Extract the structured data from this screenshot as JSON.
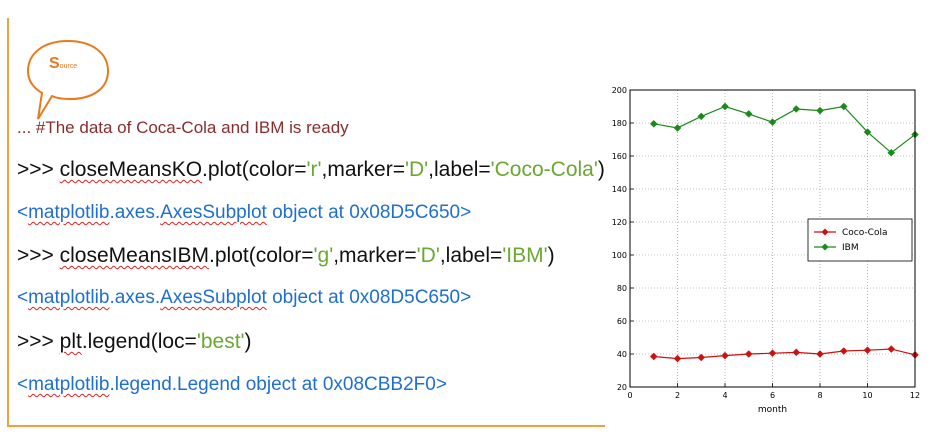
{
  "badge": {
    "letter": "S",
    "rest": "ource"
  },
  "code_lines": {
    "comment": "... #The data of Coca-Cola and IBM is ready",
    "line2": {
      "prompt": ">>> ",
      "obj": "closeMeansKO",
      "call": ".plot(color=",
      "color_val": "'r'",
      "mid": ",marker=",
      "marker_val": "'D'",
      "lab": ",label=",
      "label_val": "'Coco-Cola'",
      "end": ")"
    },
    "line3": {
      "pre": "<",
      "mod": "matplotlib",
      "dot": ".axes.",
      "cls": "AxesSubplot",
      "post": " object at 0x08D5C650>"
    },
    "line4": {
      "prompt": ">>> ",
      "obj": "closeMeansIBM",
      "call": ".plot(color=",
      "color_val": "'g'",
      "mid": ",marker=",
      "marker_val": "'D'",
      "lab": ",label=",
      "label_val": "'IBM'",
      "end": ")"
    },
    "line5": {
      "pre": "<",
      "mod": "matplotlib",
      "dot": ".axes.",
      "cls": "AxesSubplot",
      "post": " object at 0x08D5C650>"
    },
    "line6": {
      "prompt": ">>> ",
      "obj": "plt",
      "call": ".legend(loc=",
      "loc_val": "'best'",
      "end": ")"
    },
    "line7": {
      "pre": "<",
      "mod": "matplotlib",
      "mid": ".legend.Legend object at 0x08CBB2F0>"
    }
  },
  "colors": {
    "frame": "#f0a040",
    "badge": "#e87a1a",
    "comment": "#8b2c2c",
    "output": "#1f6fd0",
    "string": "#6aa832",
    "ko": "#cc1111",
    "ibm": "#1a8a1a"
  },
  "chart_data": {
    "type": "line",
    "x": [
      1,
      2,
      3,
      4,
      5,
      6,
      7,
      8,
      9,
      10,
      11,
      12
    ],
    "series": [
      {
        "name": "Coco-Cola",
        "color": "#cc1111",
        "marker": "diamond",
        "values": [
          38.5,
          37.2,
          37.9,
          39.0,
          40.0,
          40.5,
          41.0,
          40.0,
          41.8,
          42.3,
          43.0,
          39.5
        ]
      },
      {
        "name": "IBM",
        "color": "#1a8a1a",
        "marker": "diamond",
        "values": [
          179.5,
          177.0,
          184.0,
          190.0,
          185.5,
          180.5,
          188.5,
          187.5,
          190.0,
          174.5,
          162.0,
          173.0
        ]
      }
    ],
    "xlabel": "month",
    "ylabel": "",
    "xlim": [
      0,
      12
    ],
    "ylim": [
      20,
      200
    ],
    "xticks": [
      0,
      2,
      4,
      6,
      8,
      10,
      12
    ],
    "yticks": [
      20,
      40,
      60,
      80,
      100,
      120,
      140,
      160,
      180,
      200
    ],
    "grid": true,
    "legend": "center-right"
  }
}
